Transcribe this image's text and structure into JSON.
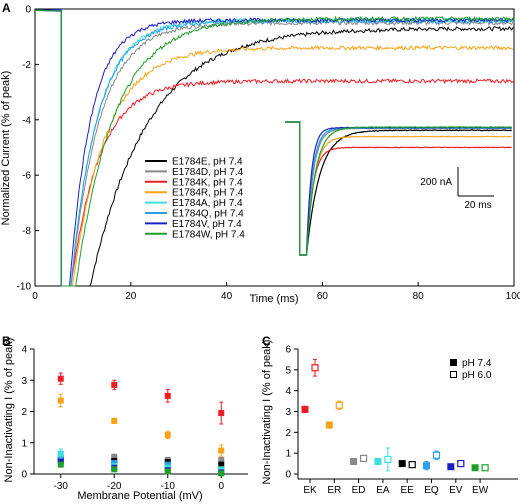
{
  "panels": {
    "a": "A",
    "b": "B",
    "c": "C"
  },
  "chart_data": [
    {
      "panel": "A",
      "type": "line",
      "xlabel": "Time (ms)",
      "ylabel": "Normalized Current (% of peak)",
      "xlim": [
        0,
        100
      ],
      "ylim": [
        -10,
        0
      ],
      "xticks": [
        "0",
        "20",
        "40",
        "60",
        "80",
        "100"
      ],
      "yticks": [
        "0",
        "-2",
        "-4",
        "-6",
        "-8",
        "-10"
      ],
      "pulse_start_ms": 5.5,
      "series": [
        {
          "name": "E1784E, pH 7.4",
          "color": "#000000",
          "steady": -0.7,
          "tau": 12,
          "t0": 11.5
        },
        {
          "name": "E1784D, pH 7.4",
          "color": "#888888",
          "steady": -0.5,
          "tau": 6,
          "t0": 7.5
        },
        {
          "name": "E1784K, pH 7.4",
          "color": "#ee1c24",
          "steady": -2.6,
          "tau": 6,
          "t0": 7.5
        },
        {
          "name": "E1784R, pH 7.4",
          "color": "#f7a418",
          "steady": -1.4,
          "tau": 7,
          "t0": 7.8
        },
        {
          "name": "E1784A, pH 7.4",
          "color": "#3ce0e0",
          "steady": -0.4,
          "tau": 5.5,
          "t0": 7.5
        },
        {
          "name": "E1784Q, pH 7.4",
          "color": "#2b9ee8",
          "steady": -0.45,
          "tau": 5.5,
          "t0": 7.5
        },
        {
          "name": "E1784V, pH 7.4",
          "color": "#1f1fbf",
          "steady": -0.4,
          "tau": 4.5,
          "t0": 7.2
        },
        {
          "name": "E1784W, pH 7.4",
          "color": "#1fa02a",
          "steady": -0.35,
          "tau": 8,
          "t0": 8.5
        }
      ],
      "scalebar": {
        "current": "200 nA",
        "time": "20 ms"
      }
    },
    {
      "panel": "B",
      "type": "scatter",
      "xlabel": "Membrane Potential (mV)",
      "ylabel": "Non-Inactivating I (% of peak)",
      "xlim": [
        -35,
        5
      ],
      "ylim": [
        0,
        4
      ],
      "xticks": [
        "-30",
        "-20",
        "-10",
        "0"
      ],
      "yticks": [
        "0",
        "1",
        "2",
        "3",
        "4"
      ],
      "x": [
        -30,
        -20,
        -10,
        0
      ],
      "series": [
        {
          "color": "#ee1c24",
          "values": [
            3.05,
            2.85,
            2.5,
            1.95
          ],
          "err": [
            0.18,
            0.15,
            0.2,
            0.35
          ]
        },
        {
          "color": "#f7a418",
          "values": [
            2.35,
            1.7,
            1.25,
            0.75
          ],
          "err": [
            0.2,
            0.08,
            0.12,
            0.18
          ]
        },
        {
          "color": "#888888",
          "values": [
            0.55,
            0.55,
            0.45,
            0.45
          ],
          "err": [
            0.1,
            0.08,
            0.08,
            0.08
          ]
        },
        {
          "color": "#000000",
          "values": [
            0.45,
            0.42,
            0.38,
            0.3
          ],
          "err": [
            0.06,
            0.06,
            0.06,
            0.06
          ]
        },
        {
          "color": "#2b9ee8",
          "values": [
            0.5,
            0.35,
            0.3,
            0.1
          ],
          "err": [
            0.08,
            0.06,
            0.06,
            0.06
          ]
        },
        {
          "color": "#3ce0e0",
          "values": [
            0.65,
            0.25,
            0.2,
            0.15
          ],
          "err": [
            0.15,
            0.06,
            0.06,
            0.06
          ]
        },
        {
          "color": "#1f1fbf",
          "values": [
            0.4,
            0.2,
            0.12,
            0.05
          ],
          "err": [
            0.06,
            0.05,
            0.05,
            0.05
          ]
        },
        {
          "color": "#1fa02a",
          "values": [
            0.3,
            0.15,
            0.08,
            0.02
          ],
          "err": [
            0.06,
            0.05,
            0.05,
            0.05
          ]
        }
      ]
    },
    {
      "panel": "C",
      "type": "scatter",
      "ylabel": "Non-Inactivating I (% of peak)",
      "ylim": [
        0,
        6
      ],
      "yticks": [
        "0",
        "1",
        "2",
        "3",
        "4",
        "5",
        "6"
      ],
      "categories": [
        "EK",
        "ER",
        "ED",
        "EA",
        "EE",
        "EQ",
        "EV",
        "EW"
      ],
      "legend": {
        "filled": "pH 7.4",
        "open": "pH 6.0"
      },
      "series": [
        {
          "category": "EK",
          "color": "#ee1c24",
          "ph74": 3.1,
          "ph74_err": 0.15,
          "ph60": 5.1,
          "ph60_err": 0.4
        },
        {
          "category": "ER",
          "color": "#f7a418",
          "ph74": 2.35,
          "ph74_err": 0.15,
          "ph60": 3.3,
          "ph60_err": 0.2
        },
        {
          "category": "ED",
          "color": "#888888",
          "ph74": 0.6,
          "ph74_err": 0.08,
          "ph60": 0.75,
          "ph60_err": 0.12
        },
        {
          "category": "EA",
          "color": "#3ce0e0",
          "ph74": 0.6,
          "ph74_err": 0.1,
          "ph60": 0.7,
          "ph60_err": 0.55
        },
        {
          "category": "EE",
          "color": "#000000",
          "ph74": 0.5,
          "ph74_err": 0.05,
          "ph60": 0.45,
          "ph60_err": 0.1
        },
        {
          "category": "EQ",
          "color": "#2b9ee8",
          "ph74": 0.4,
          "ph74_err": 0.2,
          "ph60": 0.9,
          "ph60_err": 0.2
        },
        {
          "category": "EV",
          "color": "#1f1fbf",
          "ph74": 0.35,
          "ph74_err": 0.05,
          "ph60": 0.5,
          "ph60_err": 0.12
        },
        {
          "category": "EW",
          "color": "#1fa02a",
          "ph74": 0.3,
          "ph74_err": 0.05,
          "ph60": 0.3,
          "ph60_err": 0.1
        }
      ]
    }
  ]
}
